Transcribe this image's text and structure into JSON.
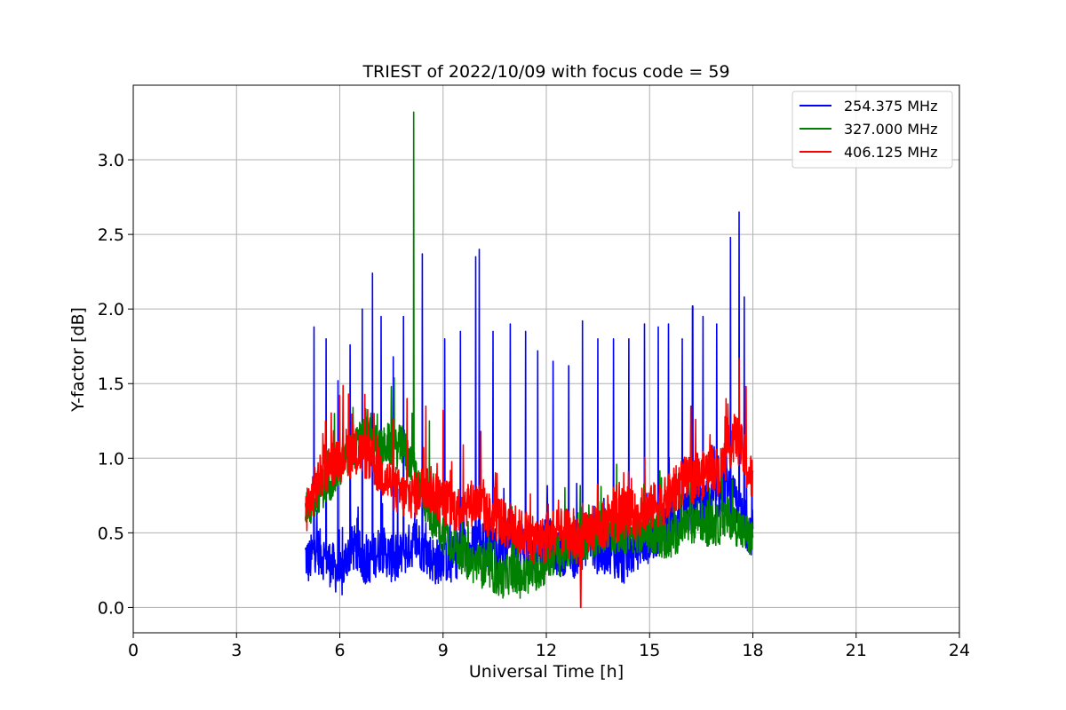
{
  "chart_data": {
    "type": "line",
    "title": "TRIEST of 2022/10/09 with focus code = 59",
    "xlabel": "Universal Time [h]",
    "ylabel": "Y-factor [dB]",
    "xlim": [
      0,
      24
    ],
    "ylim": [
      -0.17,
      3.5
    ],
    "xticks": [
      0,
      3,
      6,
      9,
      12,
      15,
      18,
      21,
      24
    ],
    "yticks": [
      0.0,
      0.5,
      1.0,
      1.5,
      2.0,
      2.5,
      3.0
    ],
    "ytick_labels": [
      "0.0",
      "0.5",
      "1.0",
      "1.5",
      "2.0",
      "2.5",
      "3.0"
    ],
    "grid": true,
    "legend_position": "top-right",
    "series": [
      {
        "name": "254.375 MHz",
        "color": "#0000ff",
        "x": [
          5.0,
          5.1,
          5.3,
          5.5,
          5.7,
          5.9,
          6.05,
          6.2,
          6.4,
          6.6,
          6.8,
          7.0,
          7.2,
          7.4,
          7.6,
          7.8,
          8.0,
          8.2,
          8.4,
          8.6,
          8.8,
          9.0,
          9.2,
          9.4,
          9.6,
          9.8,
          10.0,
          10.2,
          10.4,
          10.6,
          10.8,
          11.0,
          11.2,
          11.4,
          11.6,
          11.8,
          12.0,
          12.2,
          12.4,
          12.6,
          12.8,
          13.0,
          13.2,
          13.4,
          13.6,
          13.8,
          14.0,
          14.2,
          14.4,
          14.6,
          14.8,
          15.0,
          15.2,
          15.4,
          15.6,
          15.8,
          16.0,
          16.2,
          16.4,
          16.6,
          16.8,
          17.0,
          17.2,
          17.35,
          17.5,
          17.6,
          17.7,
          17.8,
          18.0
        ],
        "values": [
          0.35,
          0.3,
          0.4,
          0.35,
          0.3,
          0.25,
          0.2,
          0.35,
          0.4,
          0.35,
          0.3,
          0.35,
          0.4,
          0.35,
          0.3,
          0.35,
          0.4,
          0.45,
          0.4,
          0.35,
          0.3,
          0.35,
          0.3,
          0.35,
          0.4,
          0.35,
          0.5,
          0.4,
          0.45,
          0.35,
          0.4,
          0.5,
          0.45,
          0.4,
          0.35,
          0.4,
          0.5,
          0.4,
          0.35,
          0.4,
          0.35,
          0.4,
          0.45,
          0.4,
          0.35,
          0.4,
          0.35,
          0.3,
          0.35,
          0.4,
          0.45,
          0.45,
          0.5,
          0.55,
          0.6,
          0.6,
          0.65,
          0.65,
          0.7,
          0.7,
          0.7,
          0.75,
          0.8,
          0.75,
          0.7,
          0.65,
          0.6,
          0.55,
          0.5
        ],
        "spikes": [
          [
            5.25,
            1.88
          ],
          [
            5.6,
            1.8
          ],
          [
            5.95,
            1.52
          ],
          [
            6.3,
            1.76
          ],
          [
            6.65,
            2.0
          ],
          [
            6.95,
            2.24
          ],
          [
            7.2,
            1.95
          ],
          [
            7.55,
            1.68
          ],
          [
            7.85,
            1.95
          ],
          [
            8.4,
            2.37
          ],
          [
            9.05,
            1.8
          ],
          [
            9.5,
            1.85
          ],
          [
            9.95,
            2.35
          ],
          [
            10.05,
            2.4
          ],
          [
            10.45,
            1.85
          ],
          [
            10.95,
            1.9
          ],
          [
            11.4,
            1.85
          ],
          [
            11.75,
            1.72
          ],
          [
            12.2,
            1.65
          ],
          [
            12.65,
            1.62
          ],
          [
            13.05,
            1.92
          ],
          [
            13.5,
            1.8
          ],
          [
            13.95,
            1.8
          ],
          [
            14.4,
            1.8
          ],
          [
            14.85,
            1.9
          ],
          [
            15.25,
            1.88
          ],
          [
            15.55,
            1.9
          ],
          [
            15.95,
            1.8
          ],
          [
            16.25,
            2.02
          ],
          [
            16.55,
            1.95
          ],
          [
            16.95,
            1.9
          ],
          [
            17.35,
            2.48
          ],
          [
            17.6,
            2.65
          ],
          [
            17.75,
            2.08
          ]
        ]
      },
      {
        "name": "327.000 MHz",
        "color": "#008000",
        "x": [
          5.0,
          5.1,
          5.3,
          5.5,
          5.7,
          5.9,
          6.05,
          6.2,
          6.4,
          6.6,
          6.8,
          7.0,
          7.2,
          7.4,
          7.6,
          7.8,
          8.0,
          8.2,
          8.4,
          8.6,
          8.8,
          9.0,
          9.2,
          9.4,
          9.6,
          9.8,
          10.0,
          10.2,
          10.4,
          10.6,
          10.8,
          11.0,
          11.2,
          11.4,
          11.6,
          11.8,
          12.0,
          12.2,
          12.4,
          12.6,
          12.8,
          13.0,
          13.2,
          13.4,
          13.6,
          13.8,
          14.0,
          14.2,
          14.4,
          14.6,
          14.8,
          15.0,
          15.2,
          15.4,
          15.6,
          15.8,
          16.0,
          16.2,
          16.4,
          16.6,
          16.8,
          17.0,
          17.2,
          17.35,
          17.5,
          17.6,
          17.7,
          17.8,
          18.0
        ],
        "values": [
          0.7,
          0.65,
          0.75,
          0.8,
          0.85,
          0.9,
          0.95,
          1.0,
          1.05,
          1.1,
          1.15,
          1.1,
          1.05,
          1.1,
          1.05,
          1.1,
          1.0,
          0.9,
          0.75,
          0.65,
          0.55,
          0.5,
          0.45,
          0.4,
          0.35,
          0.3,
          0.3,
          0.25,
          0.25,
          0.2,
          0.2,
          0.25,
          0.2,
          0.2,
          0.25,
          0.25,
          0.3,
          0.35,
          0.35,
          0.4,
          0.4,
          0.45,
          0.45,
          0.45,
          0.5,
          0.5,
          0.5,
          0.5,
          0.5,
          0.5,
          0.5,
          0.5,
          0.5,
          0.45,
          0.45,
          0.5,
          0.55,
          0.55,
          0.6,
          0.55,
          0.55,
          0.55,
          0.6,
          0.6,
          0.55,
          0.55,
          0.5,
          0.5,
          0.45
        ],
        "spikes": [
          [
            8.15,
            3.32
          ],
          [
            7.5,
            1.48
          ],
          [
            8.6,
            1.25
          ]
        ]
      },
      {
        "name": "406.125 MHz",
        "color": "#ff0000",
        "x": [
          5.0,
          5.1,
          5.3,
          5.5,
          5.7,
          5.9,
          6.05,
          6.2,
          6.4,
          6.6,
          6.8,
          7.0,
          7.2,
          7.4,
          7.6,
          7.8,
          8.0,
          8.2,
          8.4,
          8.6,
          8.8,
          9.0,
          9.2,
          9.4,
          9.6,
          9.8,
          10.0,
          10.2,
          10.4,
          10.6,
          10.8,
          11.0,
          11.2,
          11.4,
          11.6,
          11.8,
          12.0,
          12.2,
          12.4,
          12.6,
          12.8,
          13.0,
          13.2,
          13.4,
          13.6,
          13.8,
          14.0,
          14.2,
          14.4,
          14.6,
          14.8,
          15.0,
          15.2,
          15.4,
          15.6,
          15.8,
          16.0,
          16.2,
          16.4,
          16.6,
          16.8,
          17.0,
          17.2,
          17.35,
          17.5,
          17.6,
          17.7,
          17.8,
          18.0
        ],
        "values": [
          0.65,
          0.7,
          0.8,
          0.9,
          0.95,
          1.0,
          1.0,
          1.05,
          1.0,
          1.05,
          1.0,
          0.95,
          0.9,
          0.85,
          0.8,
          0.75,
          0.75,
          0.75,
          0.8,
          0.8,
          0.75,
          0.7,
          0.7,
          0.65,
          0.7,
          0.7,
          0.7,
          0.65,
          0.6,
          0.6,
          0.55,
          0.55,
          0.5,
          0.5,
          0.45,
          0.45,
          0.45,
          0.45,
          0.5,
          0.5,
          0.45,
          0.45,
          0.5,
          0.55,
          0.55,
          0.55,
          0.6,
          0.6,
          0.65,
          0.6,
          0.65,
          0.65,
          0.7,
          0.7,
          0.75,
          0.8,
          0.85,
          0.85,
          0.85,
          0.9,
          0.95,
          0.9,
          1.0,
          1.1,
          1.15,
          1.1,
          1.05,
          0.95,
          0.85
        ],
        "spikes": [
          [
            6.25,
            1.43
          ],
          [
            7.0,
            1.3
          ],
          [
            7.95,
            1.4
          ],
          [
            8.5,
            1.35
          ],
          [
            9.0,
            1.32
          ],
          [
            10.1,
            1.18
          ],
          [
            13.0,
            0.0
          ],
          [
            16.2,
            1.35
          ],
          [
            17.6,
            1.67
          ],
          [
            17.8,
            1.48
          ]
        ]
      }
    ]
  }
}
